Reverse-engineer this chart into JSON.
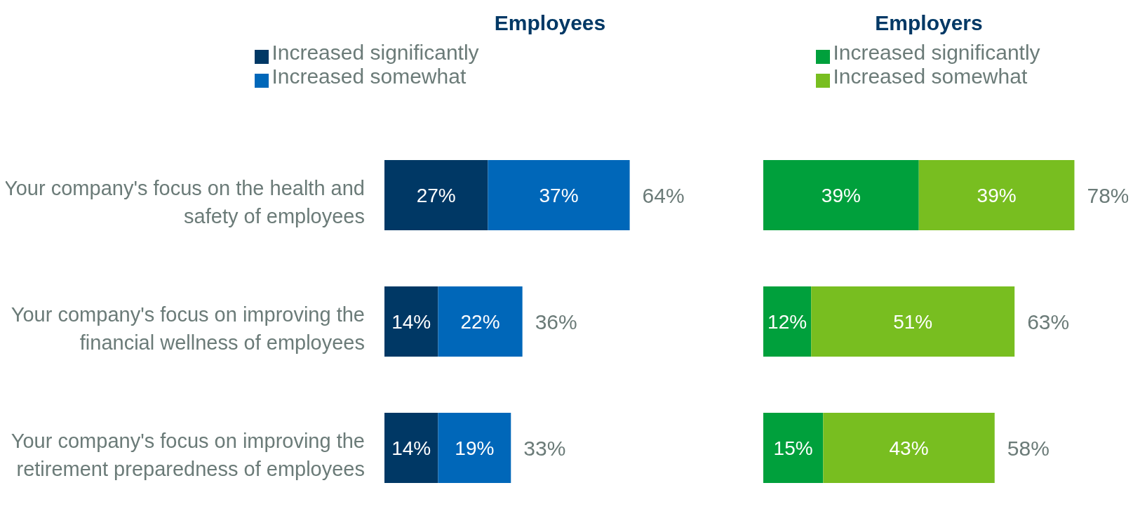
{
  "chart_data": [
    {
      "type": "bar",
      "orientation": "horizontal",
      "stacked": true,
      "title": "Employees",
      "categories": [
        "Your company's focus on the health and safety of employees",
        "Your company's focus on improving the financial wellness of employees",
        "Your company's focus on improving the retirement preparedness of employees"
      ],
      "series": [
        {
          "name": "Increased significantly",
          "color": "#003865",
          "values": [
            27,
            14,
            14
          ],
          "value_labels": [
            "27%",
            "14%",
            "14%"
          ]
        },
        {
          "name": "Increased somewhat",
          "color": "#0067b9",
          "values": [
            37,
            22,
            19
          ],
          "value_labels": [
            "37%",
            "22%",
            "19%"
          ]
        }
      ],
      "totals": [
        "64%",
        "36%",
        "33%"
      ],
      "tick_labels": "y",
      "legend": "top",
      "grid": false
    },
    {
      "type": "bar",
      "orientation": "horizontal",
      "stacked": true,
      "title": "Employers",
      "categories": [
        null,
        null,
        null
      ],
      "series": [
        {
          "name": "Increased significantly",
          "color": "#00a03c",
          "values": [
            39,
            12,
            15
          ],
          "value_labels": [
            "39%",
            "12%",
            "15%"
          ]
        },
        {
          "name": "Increased somewhat",
          "color": "#78be20",
          "values": [
            39,
            51,
            43
          ],
          "value_labels": [
            "39%",
            "51%",
            "43%"
          ]
        }
      ],
      "totals": [
        "78%",
        "63%",
        "58%"
      ],
      "tick_labels": false,
      "legend": "top",
      "grid": false
    }
  ]
}
